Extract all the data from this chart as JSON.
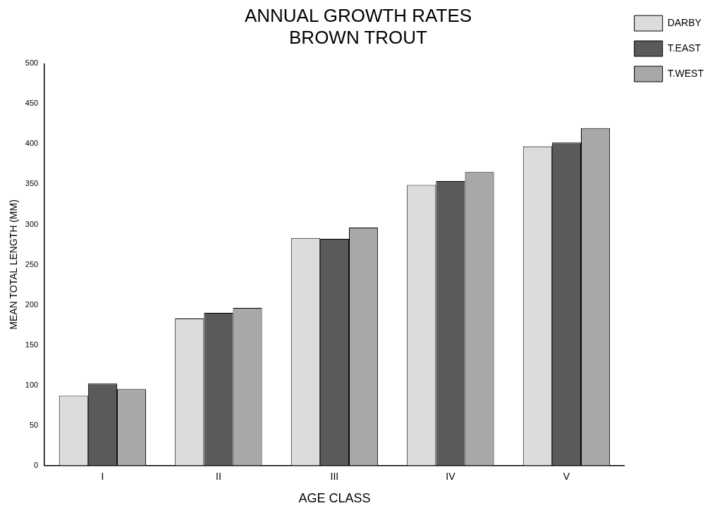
{
  "chart_data": {
    "type": "bar",
    "title": "ANNUAL GROWTH RATES\nBROWN TROUT",
    "xlabel": "AGE CLASS",
    "ylabel": "MEAN TOTAL LENGTH (MM)",
    "categories": [
      "I",
      "II",
      "III",
      "IV",
      "V"
    ],
    "series": [
      {
        "name": "DARBY",
        "color": "#dcdcdc",
        "values": [
          87,
          183,
          283,
          349,
          397
        ]
      },
      {
        "name": "T.EAST",
        "color": "#5a5a5a",
        "values": [
          102,
          190,
          282,
          354,
          402
        ]
      },
      {
        "name": "T.WEST",
        "color": "#a8a8a8",
        "values": [
          95,
          196,
          296,
          365,
          420
        ]
      }
    ],
    "ylim": [
      0,
      500
    ],
    "yticks": [
      0,
      50,
      100,
      150,
      200,
      250,
      300,
      350,
      400,
      450,
      500
    ],
    "grid": false,
    "legend": "top right"
  }
}
